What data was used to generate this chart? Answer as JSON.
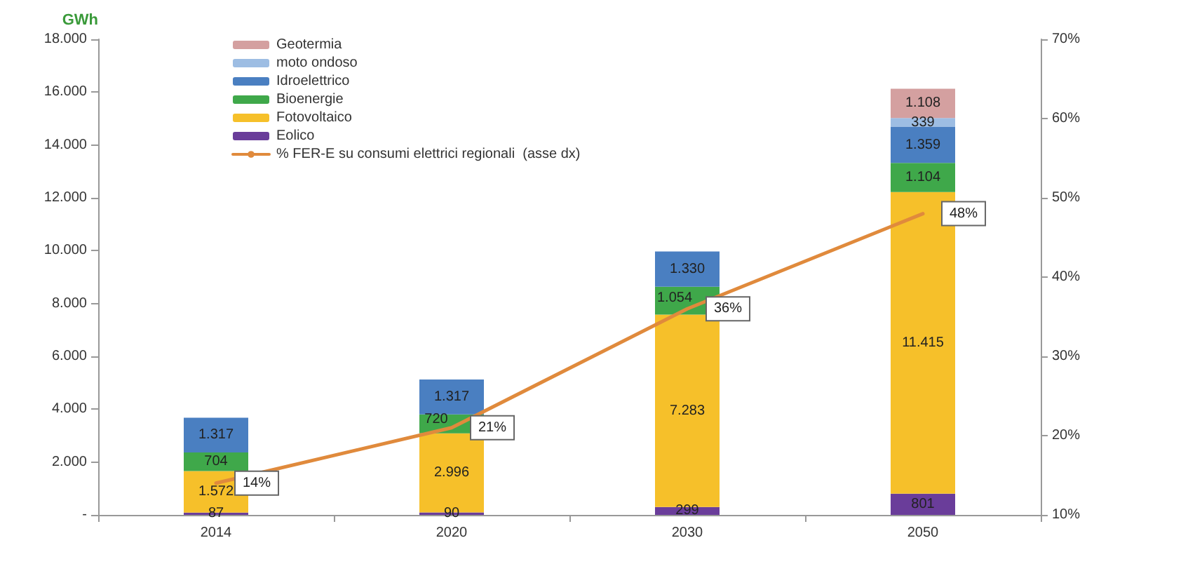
{
  "chart_data": {
    "type": "bar",
    "stacked": true,
    "ylabel": "GWh",
    "categories": [
      "2014",
      "2020",
      "2030",
      "2050"
    ],
    "series": [
      {
        "name": "Eolico",
        "color": "#6a3d9a",
        "values": [
          87,
          90,
          299,
          801
        ],
        "value_labels": [
          "87",
          "90",
          "299",
          "801"
        ]
      },
      {
        "name": "Fotovoltaico",
        "color": "#f6c02a",
        "values": [
          1572,
          2996,
          7283,
          11415
        ],
        "value_labels": [
          "1.572",
          "2.996",
          "7.283",
          "11.415"
        ]
      },
      {
        "name": "Bioenergie",
        "color": "#3fa84a",
        "values": [
          704,
          720,
          1054,
          1104
        ],
        "value_labels": [
          "704",
          "720",
          "1.054",
          "1.104"
        ]
      },
      {
        "name": "Idroelettrico",
        "color": "#4a7fc1",
        "values": [
          1317,
          1317,
          1330,
          1359
        ],
        "value_labels": [
          "1.317",
          "1.317",
          "1.330",
          "1.359"
        ]
      },
      {
        "name": "moto ondoso",
        "color": "#9dbde3",
        "values": [
          null,
          null,
          null,
          339
        ],
        "value_labels": [
          null,
          null,
          null,
          "339"
        ]
      },
      {
        "name": "Geotermia",
        "color": "#d4a0a0",
        "values": [
          null,
          null,
          null,
          1108
        ],
        "value_labels": [
          null,
          null,
          null,
          "1.108"
        ]
      },
      {
        "name": "% FER-E su consumi elettrici regionali  (asse dx)",
        "type": "line",
        "axis": "y2",
        "marker": "none",
        "color": "#e08a3c",
        "values": [
          14,
          21,
          36,
          48
        ],
        "value_labels": [
          "14%",
          "21%",
          "36%",
          "48%"
        ]
      }
    ],
    "ylim": [
      0,
      18000
    ],
    "yticks": [
      {
        "value": 0,
        "label": "-"
      },
      {
        "value": 2000,
        "label": "2.000"
      },
      {
        "value": 4000,
        "label": "4.000"
      },
      {
        "value": 6000,
        "label": "6.000"
      },
      {
        "value": 8000,
        "label": "8.000"
      },
      {
        "value": 10000,
        "label": "10.000"
      },
      {
        "value": 12000,
        "label": "12.000"
      },
      {
        "value": 14000,
        "label": "14.000"
      },
      {
        "value": 16000,
        "label": "16.000"
      },
      {
        "value": 18000,
        "label": "18.000"
      }
    ],
    "y2lim": [
      10,
      70
    ],
    "y2ticks": [
      {
        "value": 10,
        "label": "10%"
      },
      {
        "value": 20,
        "label": "20%"
      },
      {
        "value": 30,
        "label": "30%"
      },
      {
        "value": 40,
        "label": "40%"
      },
      {
        "value": 50,
        "label": "50%"
      },
      {
        "value": 60,
        "label": "60%"
      },
      {
        "value": 70,
        "label": "70%"
      }
    ],
    "grid": false,
    "legend": "top left"
  }
}
